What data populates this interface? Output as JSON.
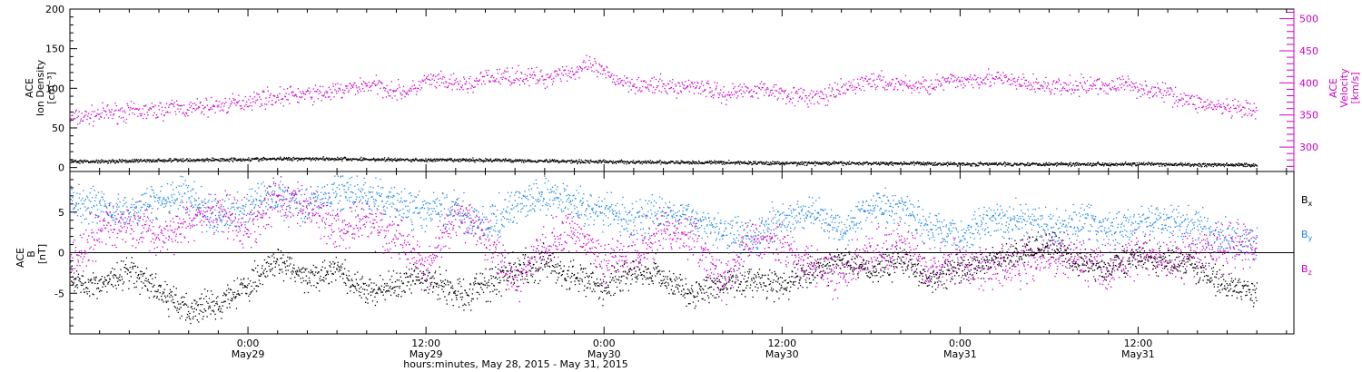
{
  "chart_data": [
    {
      "type": "scatter",
      "panel": "top",
      "ylabel_left_lines": [
        "ACE",
        "Ion Density",
        "[cm⁻³]"
      ],
      "ylabel_right_lines": [
        "ACE",
        "Velocity",
        "[km/s]"
      ],
      "ylim_left": [
        -5,
        200
      ],
      "yticks_left": [
        0,
        50,
        100,
        150,
        200
      ],
      "ylim_right": [
        262,
        515
      ],
      "yticks_right": [
        300,
        350,
        400,
        450,
        500
      ],
      "xlim_hours": [
        0,
        82.5
      ],
      "grid": false,
      "colors": {
        "density": "#000000",
        "velocity": "#cc00cc"
      },
      "series": [
        {
          "axis": "left",
          "color": "#000000",
          "x": [
            0,
            4,
            8,
            12,
            16,
            20,
            24,
            28,
            32,
            36,
            40,
            44,
            48,
            52,
            56,
            60,
            64,
            68,
            72,
            76,
            80
          ],
          "values": [
            8,
            9,
            10,
            11,
            12,
            11,
            10,
            10,
            9,
            8,
            7,
            7,
            6,
            6,
            6,
            5,
            5,
            5,
            5,
            4,
            4
          ]
        },
        {
          "axis": "right",
          "color": "#cc00cc",
          "x": [
            0,
            1,
            2,
            3,
            4,
            5,
            6,
            7,
            8,
            9,
            10,
            11,
            12,
            13,
            14,
            15,
            16,
            17,
            18,
            19,
            20,
            21,
            22,
            23,
            24,
            25,
            26,
            27,
            28,
            29,
            30,
            31,
            32,
            33,
            34,
            35,
            36,
            37,
            38,
            39,
            40,
            41,
            42,
            43,
            44,
            45,
            46,
            47,
            48,
            49,
            50,
            51,
            52,
            53,
            54,
            55,
            56,
            57,
            58,
            59,
            60,
            61,
            62,
            63,
            64,
            65,
            66,
            67,
            68,
            69,
            70,
            71,
            72,
            73,
            74,
            75,
            76,
            77,
            78,
            79,
            80
          ],
          "values": [
            345,
            348,
            352,
            355,
            355,
            356,
            358,
            362,
            360,
            363,
            365,
            368,
            373,
            378,
            378,
            382,
            382,
            385,
            387,
            393,
            398,
            395,
            388,
            388,
            405,
            402,
            398,
            398,
            408,
            410,
            412,
            410,
            407,
            418,
            417,
            428,
            415,
            405,
            400,
            395,
            396,
            393,
            398,
            392,
            382,
            388,
            392,
            390,
            386,
            380,
            378,
            380,
            390,
            398,
            405,
            400,
            400,
            395,
            398,
            402,
            404,
            408,
            408,
            405,
            400,
            398,
            395,
            393,
            395,
            398,
            395,
            400,
            394,
            388,
            385,
            376,
            370,
            365,
            360,
            358,
            356
          ]
        }
      ]
    },
    {
      "type": "scatter",
      "panel": "bottom",
      "ylabel_left_lines": [
        "ACE",
        "B",
        "[nT]"
      ],
      "ylim": [
        -10,
        10
      ],
      "yticks": [
        -5,
        0,
        5
      ],
      "zero_line": true,
      "xlim_hours": [
        0,
        82.5
      ],
      "grid": false,
      "legend_position": "right",
      "colors": {
        "bx": "#000000",
        "by": "#1e88e5",
        "bz": "#cc00cc"
      },
      "series": [
        {
          "name": "Bx",
          "color": "#000000",
          "x": [
            0,
            2,
            4,
            6,
            8,
            10,
            12,
            14,
            16,
            18,
            20,
            22,
            24,
            26,
            28,
            30,
            32,
            34,
            36,
            38,
            40,
            42,
            44,
            46,
            48,
            50,
            52,
            54,
            56,
            58,
            60,
            62,
            64,
            66,
            68,
            70,
            72,
            74,
            76,
            78,
            80
          ],
          "values": [
            -3,
            -4,
            -2,
            -5,
            -7,
            -6,
            -4,
            -1,
            -3,
            -2,
            -5,
            -4,
            -3,
            -5,
            -4,
            -2,
            -1,
            -3,
            -4,
            -2,
            -3,
            -5,
            -4,
            -3,
            -4,
            -2,
            -1,
            -2,
            -1,
            -3,
            -2,
            -1,
            0,
            1,
            -1,
            -2,
            0,
            -1,
            -2,
            -4,
            -5
          ]
        },
        {
          "name": "By",
          "color": "#1e88e5",
          "x": [
            0,
            2,
            4,
            6,
            8,
            10,
            12,
            14,
            16,
            18,
            20,
            22,
            24,
            26,
            28,
            30,
            32,
            34,
            36,
            38,
            40,
            42,
            44,
            46,
            48,
            50,
            52,
            54,
            56,
            58,
            60,
            62,
            64,
            66,
            68,
            70,
            72,
            74,
            76,
            78,
            80
          ],
          "values": [
            6.5,
            6,
            5,
            6.5,
            7,
            4,
            6,
            7,
            6,
            7.5,
            7,
            6,
            5,
            5.5,
            3,
            6,
            7,
            6,
            5,
            4,
            5,
            4,
            3,
            2,
            4,
            5,
            3,
            6,
            5.5,
            3,
            2,
            4,
            4,
            3,
            4,
            3,
            3.5,
            4,
            3,
            2,
            1.5
          ]
        },
        {
          "name": "Bz",
          "color": "#cc00cc",
          "x": [
            0,
            2,
            4,
            6,
            8,
            10,
            12,
            14,
            16,
            18,
            20,
            22,
            24,
            26,
            28,
            30,
            32,
            34,
            36,
            38,
            40,
            42,
            44,
            46,
            48,
            50,
            52,
            54,
            56,
            58,
            60,
            62,
            64,
            66,
            68,
            70,
            72,
            74,
            76,
            78,
            80
          ],
          "values": [
            -1,
            3,
            4,
            2,
            4,
            5,
            3,
            7,
            6,
            3,
            4,
            2,
            -2,
            5,
            2,
            -4,
            1,
            3,
            -1,
            0,
            3,
            2,
            -4,
            2,
            1,
            -2,
            -2,
            0,
            1,
            -2,
            -1,
            -2,
            -1,
            0,
            -1,
            -2,
            0,
            -1,
            0,
            1,
            1
          ]
        }
      ],
      "legend": [
        {
          "label": "B",
          "sub": "x",
          "color": "#000000"
        },
        {
          "label": "B",
          "sub": "y",
          "color": "#1e88e5"
        },
        {
          "label": "B",
          "sub": "z",
          "color": "#cc00cc"
        }
      ]
    }
  ],
  "x_axis": {
    "title": "hours:minutes, May 28, 2015 - May 31, 2015",
    "ticks": [
      {
        "hour": 12,
        "time": "0:00",
        "date": "May29"
      },
      {
        "hour": 24,
        "time": "12:00",
        "date": "May29"
      },
      {
        "hour": 36,
        "time": "0:00",
        "date": "May30"
      },
      {
        "hour": 48,
        "time": "12:00",
        "date": "May30"
      },
      {
        "hour": 60,
        "time": "0:00",
        "date": "May31"
      },
      {
        "hour": 72,
        "time": "12:00",
        "date": "May31"
      }
    ]
  }
}
